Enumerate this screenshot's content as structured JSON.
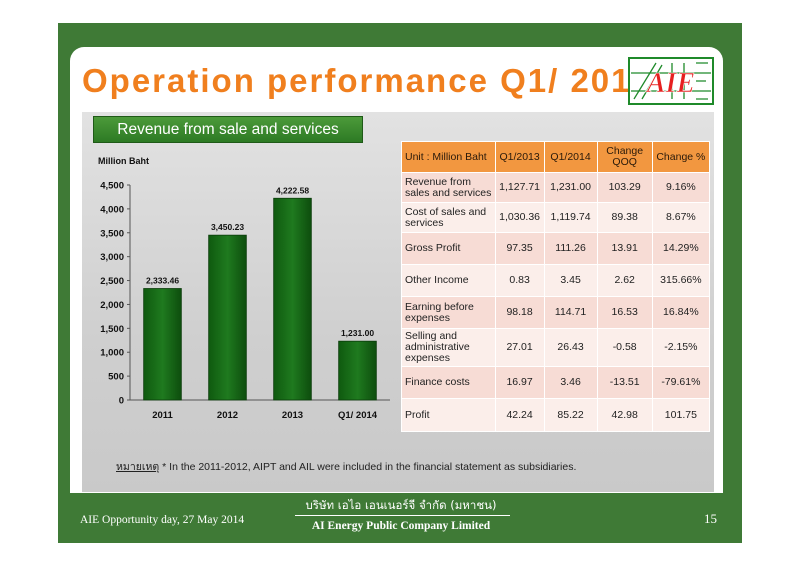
{
  "slide": {
    "title": "Operation performance Q1/ 2014",
    "logo_text": "AIE",
    "revenue_banner": "Revenue from sale and services"
  },
  "chart_data": {
    "type": "bar",
    "ylabel": "Million Baht",
    "categories": [
      "2011",
      "2012",
      "2013",
      "Q1/ 2014"
    ],
    "values": [
      2333.46,
      3450.23,
      4222.58,
      1231.0
    ],
    "data_labels": [
      "2,333.46",
      "3,450.23",
      "4,222.58",
      "1,231.00"
    ],
    "yticks": [
      0,
      500,
      1000,
      1500,
      2000,
      2500,
      3000,
      3500,
      4000,
      4500
    ],
    "ytick_labels": [
      "0",
      "500",
      "1,000",
      "1,500",
      "2,000",
      "2,500",
      "3,000",
      "3,500",
      "4,000",
      "4,500"
    ],
    "ylim": [
      0,
      4500
    ],
    "grid": false,
    "bar_color": "#1f7a1f"
  },
  "table": {
    "headers": [
      "Unit : Million Baht",
      "Q1/2013",
      "Q1/2014",
      "Change QOQ",
      "Change %"
    ],
    "rows": [
      [
        "Revenue from sales and services",
        "1,127.71",
        "1,231.00",
        "103.29",
        "9.16%"
      ],
      [
        "Cost of sales and services",
        "1,030.36",
        "1,119.74",
        "89.38",
        "8.67%"
      ],
      [
        "Gross Profit",
        "97.35",
        "111.26",
        "13.91",
        "14.29%"
      ],
      [
        "Other Income",
        "0.83",
        "3.45",
        "2.62",
        "315.66%"
      ],
      [
        "Earning before expenses",
        "98.18",
        "114.71",
        "16.53",
        "16.84%"
      ],
      [
        "Selling and administrative expenses",
        "27.01",
        "26.43",
        "-0.58",
        "-2.15%"
      ],
      [
        "Finance costs",
        "16.97",
        "3.46",
        "-13.51",
        "-79.61%"
      ],
      [
        "Profit",
        "42.24",
        "85.22",
        "42.98",
        "101.75"
      ]
    ]
  },
  "note": {
    "label": "หมายเหตุ",
    "text": " * In the 2011-2012, AIPT and AIL were included in the financial statement as subsidiaries."
  },
  "footer": {
    "event": "AIE Opportunity day, 27 May 2014",
    "company_thai": "บริษัท เอไอ เอนเนอร์จี จำกัด (มหาชน)",
    "company_en": "AI Energy Public Company Limited",
    "page": "15"
  },
  "colors": {
    "frame": "#3f7a36",
    "title": "#f07f1e",
    "header": "#f29740"
  }
}
